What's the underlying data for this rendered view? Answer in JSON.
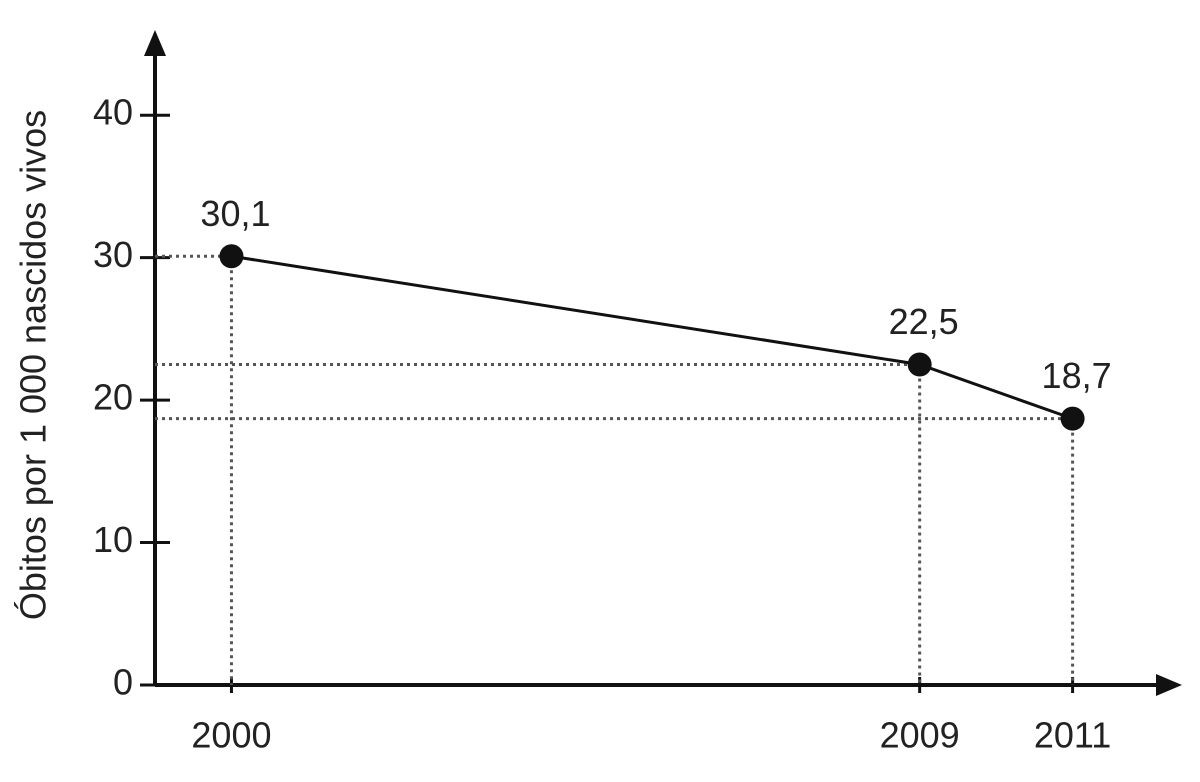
{
  "chart_data": {
    "type": "line",
    "y_label": "Óbitos por 1 000 nascidos vivos",
    "x": [
      2000,
      2009,
      2011
    ],
    "values": [
      30.1,
      22.5,
      18.7
    ],
    "value_labels": [
      "30,1",
      "22,5",
      "18,7"
    ],
    "color": "#111111",
    "xlim": [
      1999,
      2012.3
    ],
    "xticks": [
      2000,
      2009,
      2011
    ],
    "ylim": [
      0,
      45
    ],
    "yticks": [
      0,
      10,
      20,
      30,
      40
    ],
    "guides": true
  }
}
